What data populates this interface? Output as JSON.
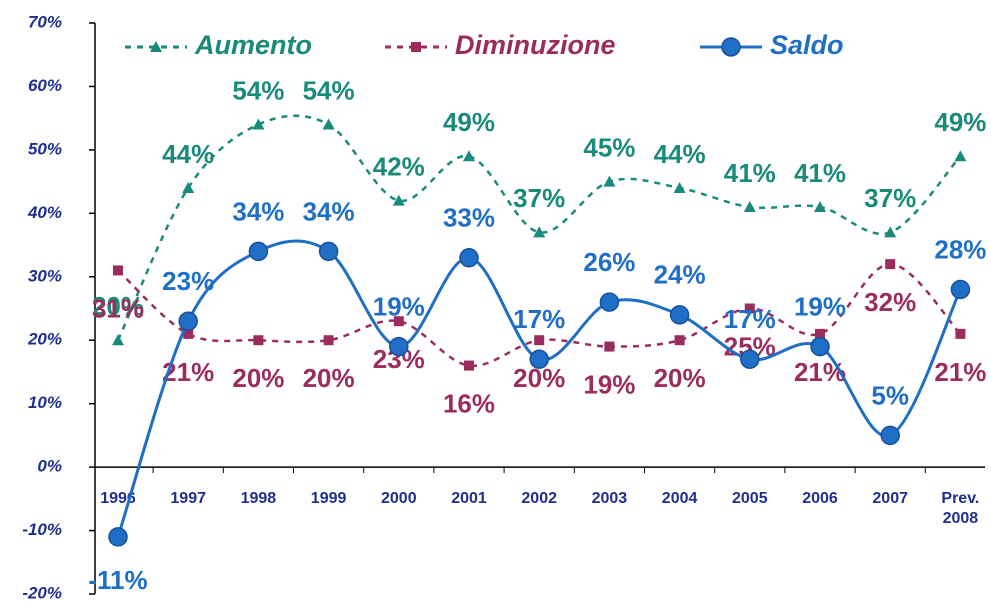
{
  "chart_data": {
    "type": "line",
    "categories": [
      "1996",
      "1997",
      "1998",
      "1999",
      "2000",
      "2001",
      "2002",
      "2003",
      "2004",
      "2005",
      "2006",
      "2007",
      "Prev. 2008"
    ],
    "series": [
      {
        "name": "Aumento",
        "color": "#1a8a7a",
        "marker": "triangle",
        "style": "dashed",
        "values": [
          20,
          44,
          54,
          54,
          42,
          49,
          37,
          45,
          44,
          41,
          41,
          37,
          49
        ],
        "value_labels": [
          "20%",
          "44%",
          "54%",
          "54%",
          "42%",
          "49%",
          "37%",
          "45%",
          "44%",
          "41%",
          "41%",
          "37%",
          "49%"
        ]
      },
      {
        "name": "Diminuzione",
        "color": "#9b2d5e",
        "marker": "square",
        "style": "dashed",
        "values": [
          31,
          21,
          20,
          20,
          23,
          16,
          20,
          19,
          20,
          25,
          21,
          32,
          21
        ],
        "value_labels": [
          "31%",
          "21%",
          "20%",
          "20%",
          "23%",
          "16%",
          "20%",
          "19%",
          "20%",
          "25%",
          "21%",
          "32%",
          "21%"
        ]
      },
      {
        "name": "Saldo",
        "color": "#1f6fc7",
        "marker": "circle",
        "style": "solid",
        "values": [
          -11,
          23,
          34,
          34,
          19,
          33,
          17,
          26,
          24,
          17,
          19,
          5,
          28
        ],
        "value_labels": [
          "-11%",
          "23%",
          "34%",
          "34%",
          "19%",
          "33%",
          "17%",
          "26%",
          "24%",
          "17%",
          "19%",
          "5%",
          "28%"
        ]
      }
    ],
    "ylim": [
      -20,
      70
    ],
    "yticks": [
      {
        "value": -20,
        "label": "-20%"
      },
      {
        "value": -10,
        "label": "-10%"
      },
      {
        "value": 0,
        "label": "0%"
      },
      {
        "value": 10,
        "label": "10%"
      },
      {
        "value": 20,
        "label": "20%"
      },
      {
        "value": 30,
        "label": "30%"
      },
      {
        "value": 40,
        "label": "40%"
      },
      {
        "value": 50,
        "label": "50%"
      },
      {
        "value": 60,
        "label": "60%"
      },
      {
        "value": 70,
        "label": "70%"
      }
    ],
    "grid": false,
    "legend": "top",
    "smooth": true
  }
}
